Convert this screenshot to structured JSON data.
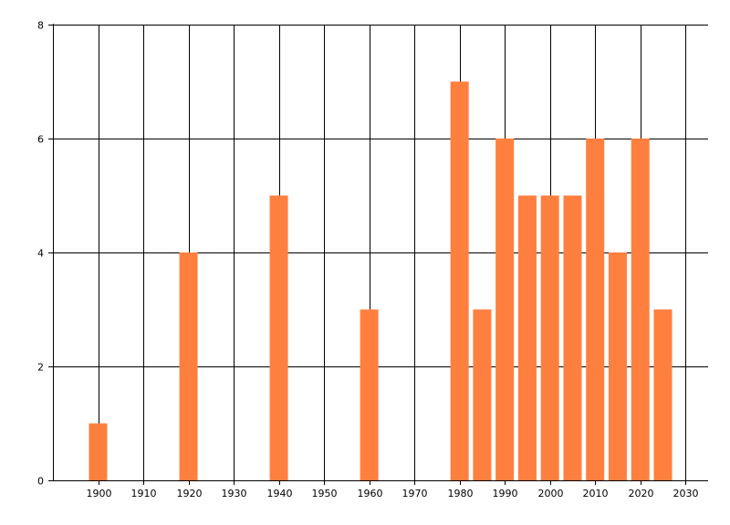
{
  "chart_data": {
    "type": "bar",
    "title": "",
    "xlabel": "",
    "ylabel": "",
    "x": [
      1900,
      1920,
      1940,
      1960,
      1980,
      1985,
      1990,
      1995,
      2000,
      2005,
      2010,
      2015,
      2020,
      2025
    ],
    "values": [
      1,
      4,
      5,
      3,
      7,
      3,
      6,
      5,
      5,
      5,
      6,
      4,
      6,
      3
    ],
    "xlim": [
      1890,
      2035
    ],
    "ylim": [
      0,
      8
    ],
    "xticks": [
      1900,
      1910,
      1920,
      1930,
      1940,
      1950,
      1960,
      1970,
      1980,
      1990,
      2000,
      2010,
      2020,
      2030
    ],
    "yticks": [
      0,
      2,
      4,
      6,
      8
    ],
    "grid": true,
    "legend": "none",
    "colors": {
      "bar": "#FF7F3F",
      "grid": "#000000",
      "axis": "#000000",
      "background": "#ffffff"
    }
  }
}
